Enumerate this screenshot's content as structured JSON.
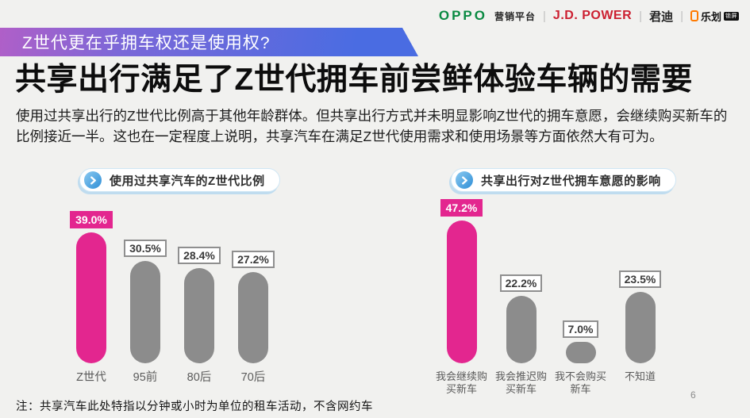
{
  "page": {
    "background": "#f1f1ef",
    "page_number": "6"
  },
  "header_logos": {
    "oppo": "OPPO",
    "oppo_platform": "营销平台",
    "divider": "|",
    "jd_power": "J.D. POWER",
    "jundi": "君迪",
    "lehua": "乐划",
    "lehua_badge": "锁屏"
  },
  "banner": {
    "text": "Z世代更在乎拥车权还是使用权?"
  },
  "headline": "共享出行满足了Z世代拥车前尝鲜体验车辆的需要",
  "body_text": "使用过共享出行的Z世代比例高于其他年龄群体。但共享出行方式并未明显影响Z世代的拥车意愿，会继续购买新车的比例接近一半。这也在一定程度上说明，共享汽车在满足Z世代使用需求和使用场景等方面依然大有可为。",
  "footnote": "注：共享汽车此处特指以分钟或小时为单位的租车活动，不含网约车",
  "colors": {
    "page_bg": "#f1f1ef",
    "accent_magenta": "#e3268f",
    "bar_gray": "#8c8c8c",
    "banner_gradient_start": "#b05fc8",
    "banner_gradient_mid": "#7a68d8",
    "banner_gradient_end": "#4a6ce2",
    "oppo_green": "#0a8a42",
    "jd_power_red": "#cc1f30",
    "lehua_orange": "#ff7a00",
    "header_circle_blue": "#2e8ed6"
  },
  "chart_data": [
    {
      "type": "bar",
      "title": "使用过共享汽车的Z世代比例",
      "categories": [
        "Z世代",
        "95前",
        "80后",
        "70后"
      ],
      "values": [
        39.0,
        30.5,
        28.4,
        27.2
      ],
      "value_labels": [
        "39.0%",
        "30.5%",
        "28.4%",
        "27.2%"
      ],
      "category_lines": [
        [
          "Z世代"
        ],
        [
          "95前"
        ],
        [
          "80后"
        ],
        [
          "70后"
        ]
      ],
      "highlight_index": 0,
      "unit": "%",
      "ylim": [
        0,
        45
      ],
      "grid": false,
      "legend": false
    },
    {
      "type": "bar",
      "title": "共享出行对Z世代拥车意愿的影响",
      "categories": [
        "我会继续购买新车",
        "我会推迟购买新车",
        "我不会购买新车",
        "不知道"
      ],
      "values": [
        47.2,
        22.2,
        7.0,
        23.5
      ],
      "value_labels": [
        "47.2%",
        "22.2%",
        "7.0%",
        "23.5%"
      ],
      "category_lines": [
        [
          "我会继续购",
          "买新车"
        ],
        [
          "我会推迟购",
          "买新车"
        ],
        [
          "我不会购买",
          "新车"
        ],
        [
          "不知道"
        ]
      ],
      "highlight_index": 0,
      "unit": "%",
      "ylim": [
        0,
        55
      ],
      "grid": false,
      "legend": false
    }
  ]
}
